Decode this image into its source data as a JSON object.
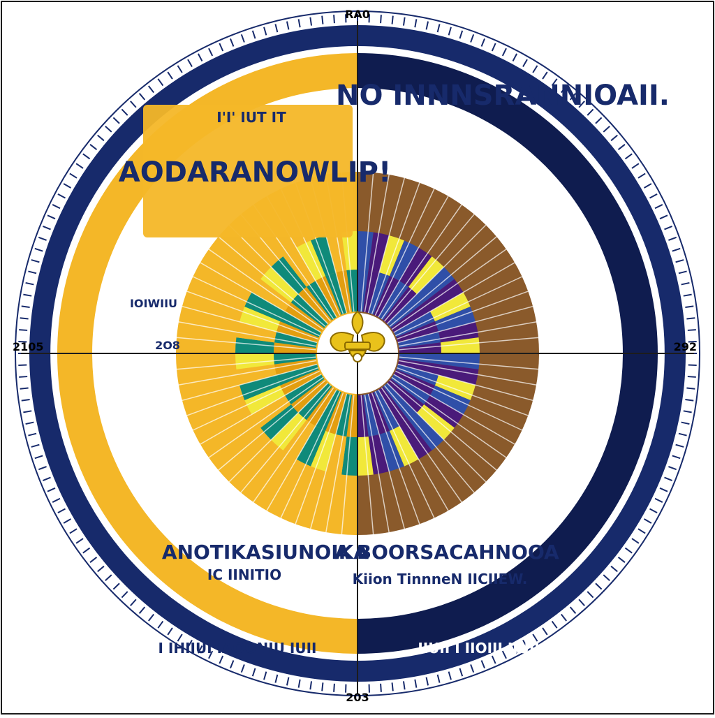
{
  "colors": {
    "background": "#ffffff",
    "frame": "#1c1c1c",
    "gold": "#f4b728",
    "gold_dark": "#e39e10",
    "navy": "#172a6b",
    "navy_dark": "#0f1c4f",
    "blue": "#2f4fa8",
    "brown": "#8a5a2b",
    "teal": "#0f8a7a",
    "purple": "#4a1a7a",
    "yellow": "#f1e83a",
    "emblem_gold": "#e9c21b",
    "emblem_stroke": "#8a6a00"
  },
  "diagram": {
    "ticks": {
      "top": "RA0",
      "left": "2105",
      "right": "292",
      "bottom": "203"
    },
    "labels": {
      "gold_banner": "AODARANOWLIP!",
      "gold_small": "I'I' IUT IT",
      "navy_banner": "NO INNNSRANNIOAII.",
      "lower_left_banner": "ANOTIKASIUNOIKA",
      "lower_right_banner": "A BOORSACAHNOOA",
      "lower_right_line": "Kiion TinnneN IICIIEW.",
      "lower_left_line": "IC IINITIO",
      "bottom_left_line": "I IHIIUI IAOONIU IUII",
      "bottom_right_line": "IIUII I IIOIII IIUIU",
      "inner_left_ring_1": "2O8",
      "inner_left_ring_2": "IOIWIIU"
    },
    "emblem": {
      "icon": "fleur-de-lis-icon"
    }
  }
}
